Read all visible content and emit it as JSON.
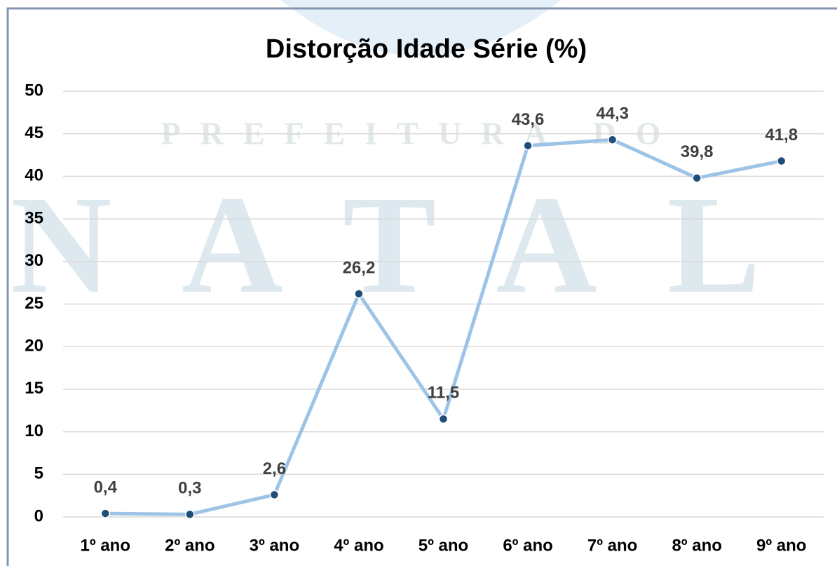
{
  "chart_data": {
    "type": "line",
    "title": "Distorção Idade Série (%)",
    "watermark": [
      "PREFEITURA DO",
      "NATAL"
    ],
    "categories": [
      "1º ano",
      "2º ano",
      "3º ano",
      "4º ano",
      "5º ano",
      "6º ano",
      "7º ano",
      "8º ano",
      "9º ano"
    ],
    "series": [
      {
        "color": "#9dc3e6",
        "marker_color": "#1f4e79",
        "values": [
          0.4,
          0.3,
          2.6,
          26.2,
          11.5,
          43.6,
          44.3,
          39.8,
          41.8
        ],
        "value_labels": [
          "0,4",
          "0,3",
          "2,6",
          "26,2",
          "11,5",
          "43,6",
          "44,3",
          "39,8",
          "41,8"
        ]
      }
    ],
    "ylim": [
      0,
      50
    ],
    "yticks": [
      0,
      5,
      10,
      15,
      20,
      25,
      30,
      35,
      40,
      45,
      50
    ],
    "grid": true
  }
}
